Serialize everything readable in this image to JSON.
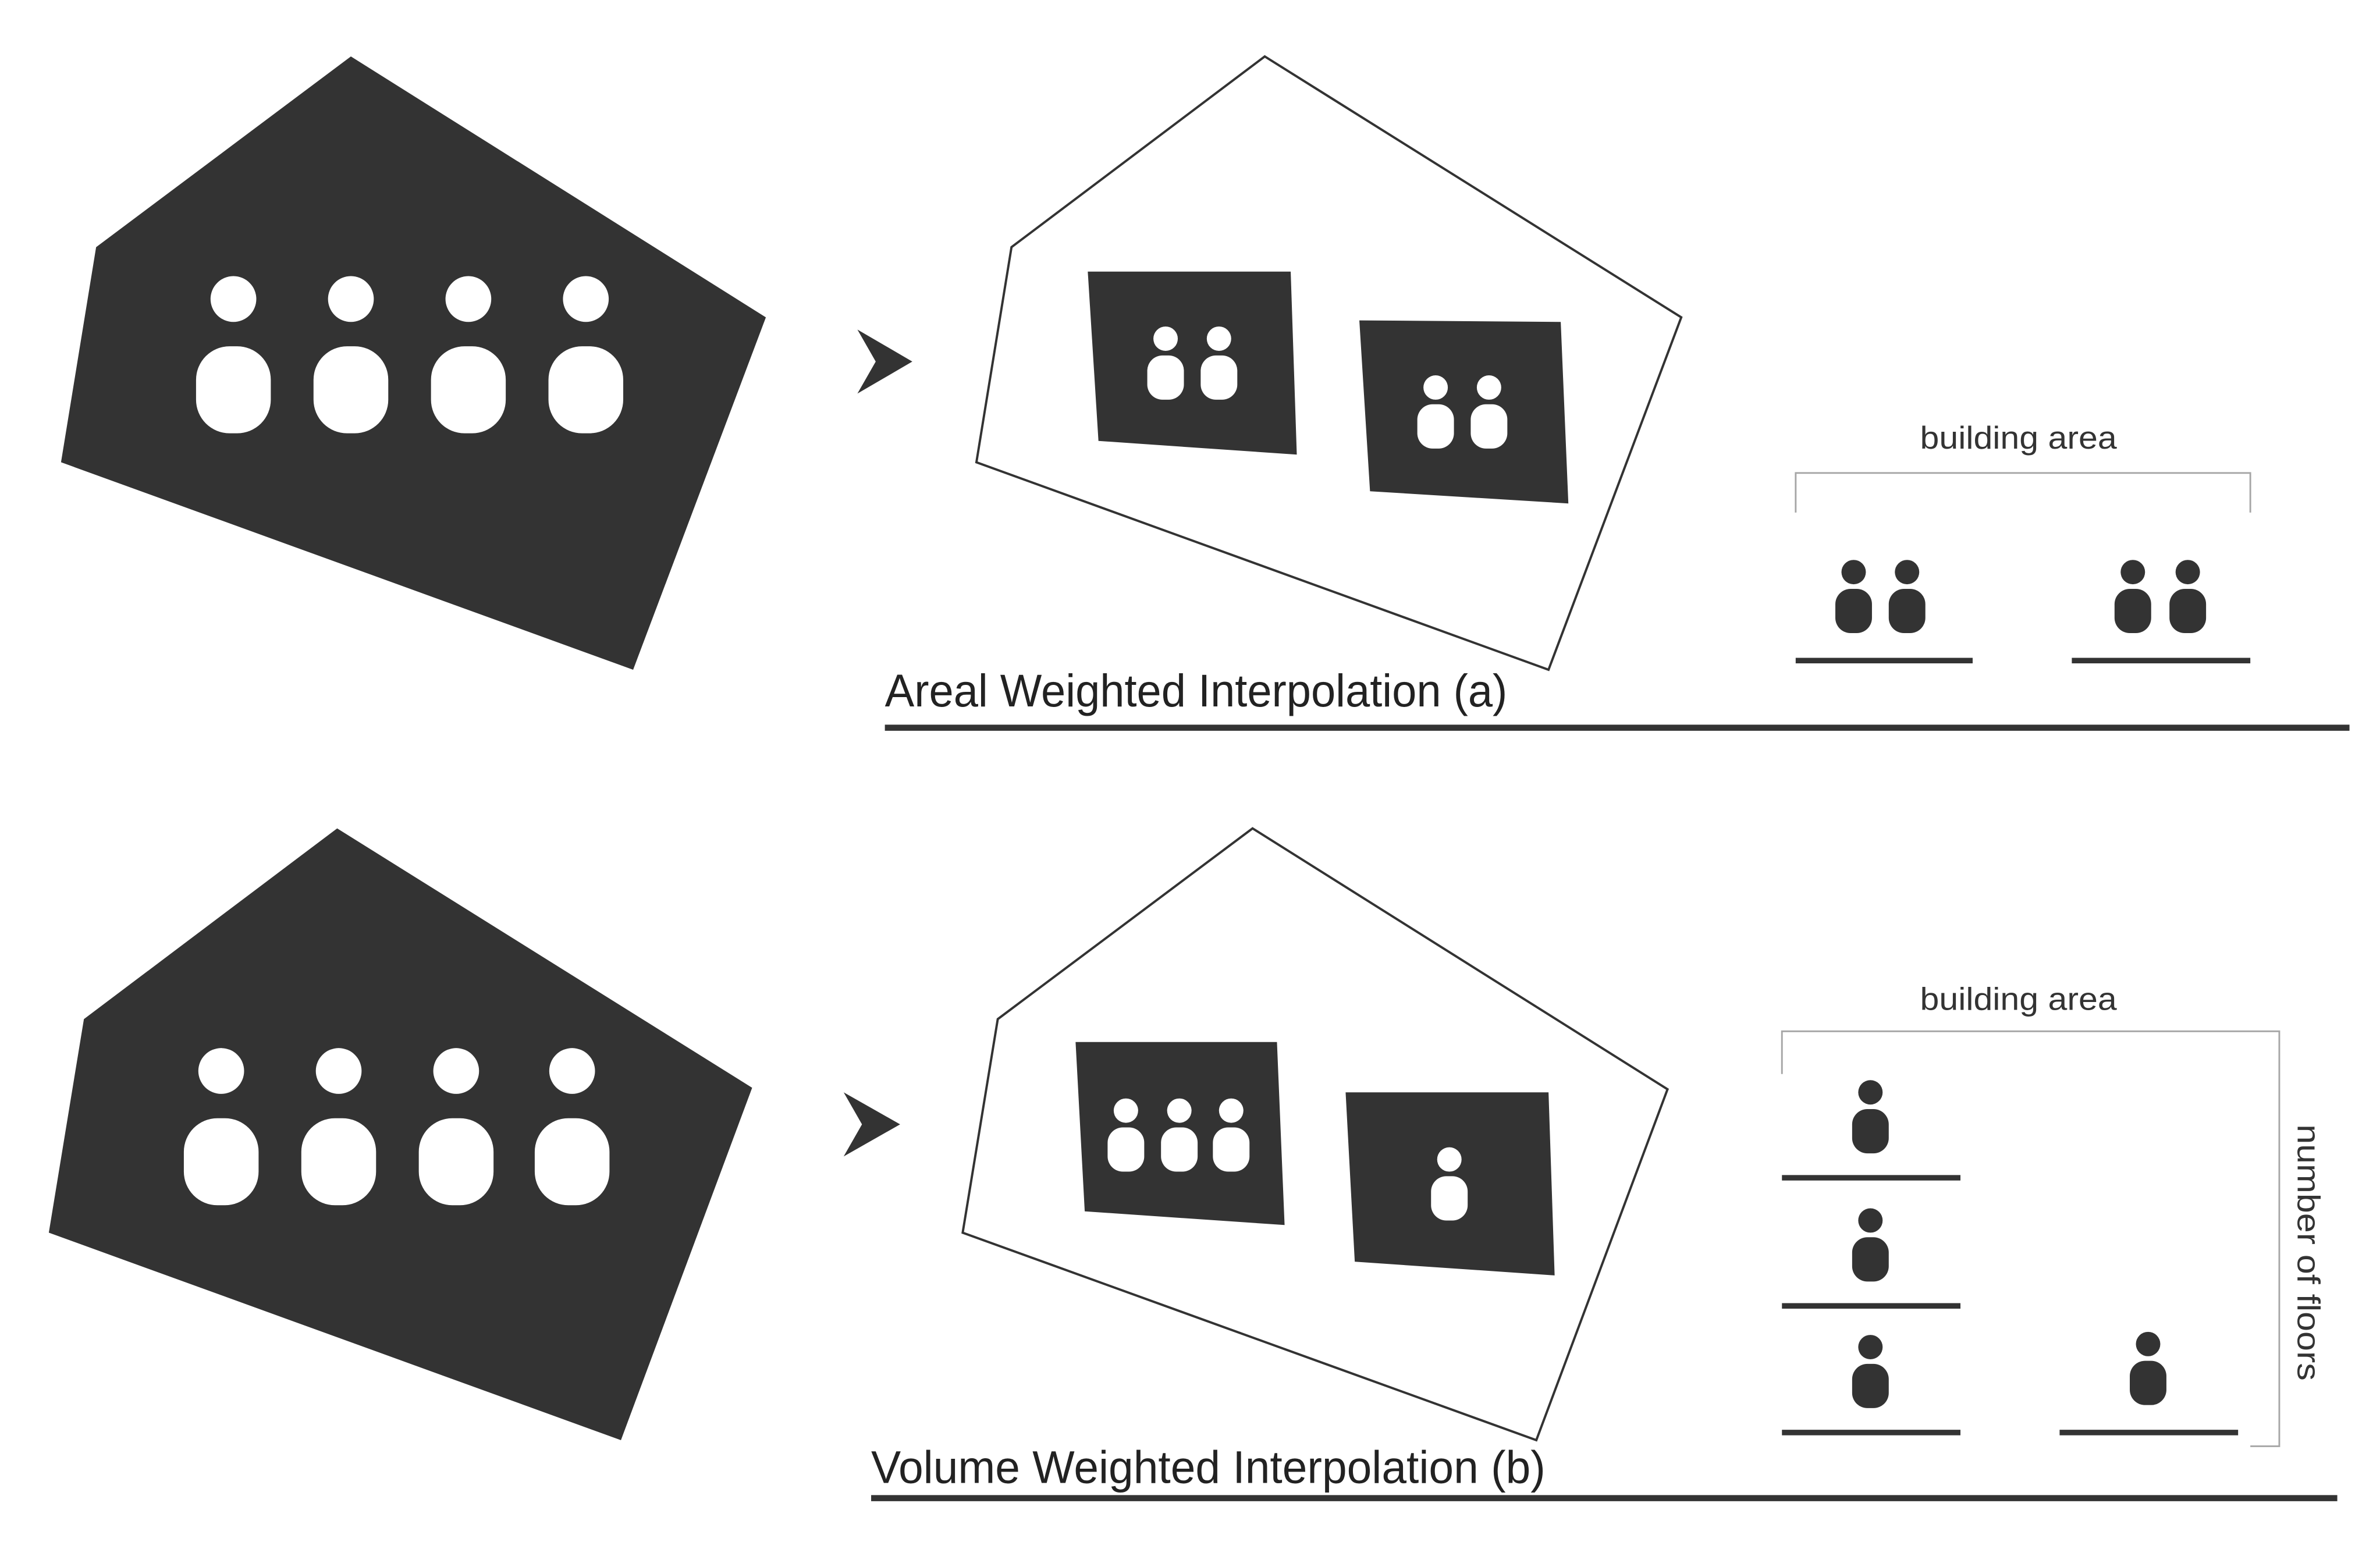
{
  "panels": [
    {
      "title": "Areal Weighted Interpolation (a)",
      "bracket_label": "building area"
    },
    {
      "title": "Volume Weighted Interpolation (b)",
      "bracket_label": "building area",
      "side_label": "number of floors"
    }
  ],
  "icons": {
    "person": "person-icon",
    "arrow": "chevron-right-icon"
  },
  "colors": {
    "fill": "#333333",
    "outline": "#333333",
    "bracket": "#a6a6a6",
    "background": "#ffffff"
  }
}
